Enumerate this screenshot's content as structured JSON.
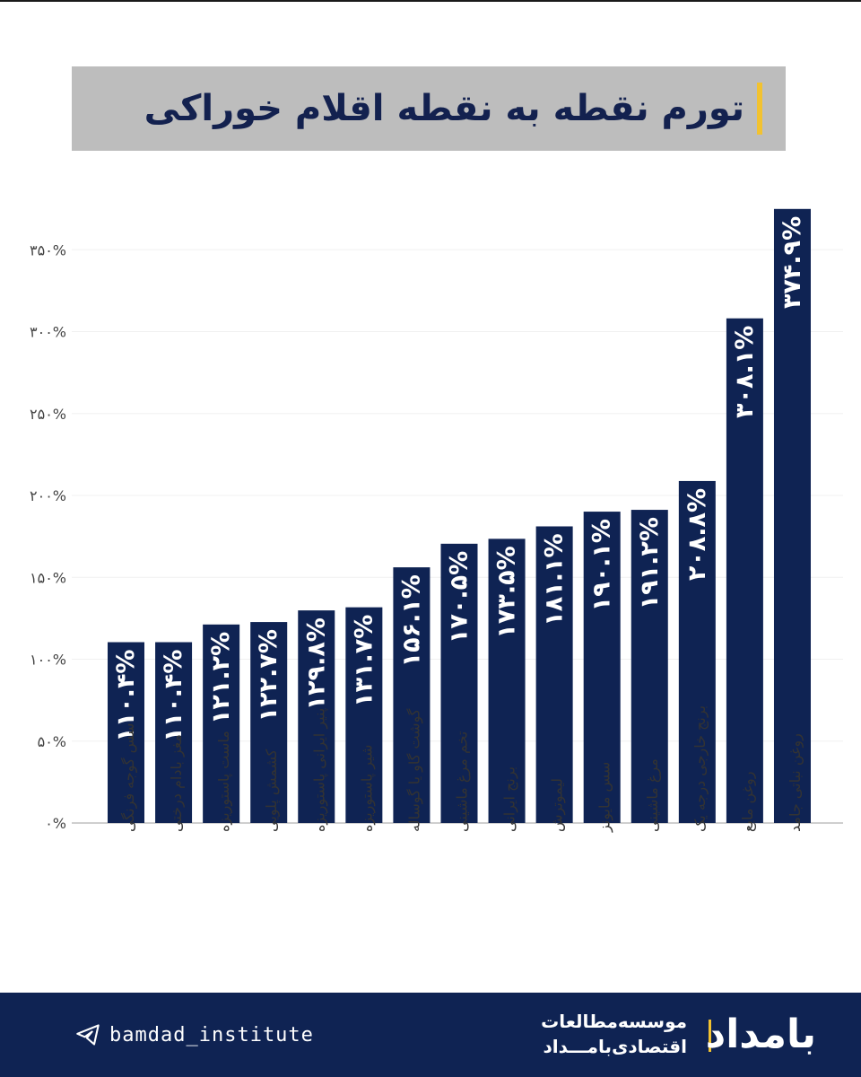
{
  "title": "تورم نقطه به نقطه اقلام خوراکی",
  "footer": {
    "handle": "bamdad_institute",
    "org_line1": "موسسه‌مطالعات",
    "org_line2": "اقتصادی‌بامـــداد",
    "logo_text": "بامداد",
    "logo_color": "#ffffff",
    "background": "#0f2353",
    "accent": "#f2c230"
  },
  "chart_data": {
    "type": "bar",
    "title": "تورم نقطه به نقطه اقلام خوراکی",
    "xlabel": "",
    "ylabel": "",
    "ylim": [
      0,
      375
    ],
    "yticks": [
      0,
      50,
      100,
      150,
      200,
      250,
      300,
      350
    ],
    "ytick_labels": [
      "۰%",
      "۵۰%",
      "۱۰۰%",
      "۱۵۰%",
      "۲۰۰%",
      "۲۵۰%",
      "۳۰۰%",
      "۳۵۰%"
    ],
    "grid": true,
    "legend": "none",
    "bar_color": "#0f2353",
    "label_color": "#ffffff",
    "categories": [
      "سس گوجه فرنگی",
      "مغز بادام درختی",
      "ماست پاستوریزه",
      "کشمش پلویی",
      "پنیر ایرانی پاستوریزه",
      "شیر پاستوریزه",
      "گوشت گاو یا گوساله",
      "تخم مرغ ماشینی",
      "برنج ایرانی",
      "لیموترش",
      "سس مایونز",
      "مرغ ماشینی",
      "برنج خارجی درجه یک",
      "روغن مایع",
      "روغن نباتی جامد"
    ],
    "values": [
      110.4,
      110.4,
      121.2,
      122.7,
      129.8,
      131.7,
      156.1,
      170.5,
      173.5,
      181.1,
      190.1,
      191.2,
      208.8,
      308.1,
      374.9
    ],
    "value_labels": [
      "۱۱۰.۴%",
      "۱۱۰.۴%",
      "۱۲۱.۲%",
      "۱۲۲.۷%",
      "۱۲۹.۸%",
      "۱۳۱.۷%",
      "۱۵۶.۱%",
      "۱۷۰.۵%",
      "۱۷۳.۵%",
      "۱۸۱.۱%",
      "۱۹۰.۱%",
      "۱۹۱.۲%",
      "۲۰۸.۸%",
      "۳۰۸.۱%",
      "۳۷۴.۹%"
    ]
  }
}
